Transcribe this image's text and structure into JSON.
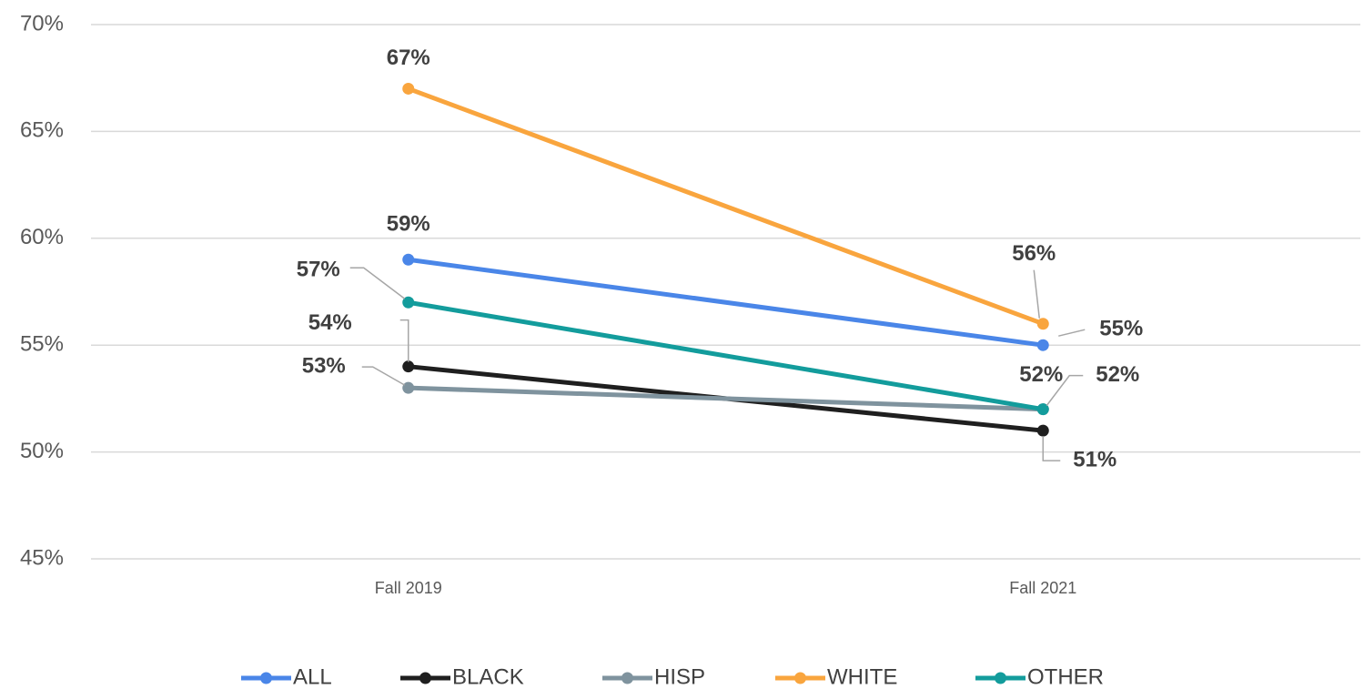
{
  "chart_data": {
    "type": "line",
    "categories": [
      "Fall 2019",
      "Fall 2021"
    ],
    "series": [
      {
        "name": "ALL",
        "color": "#4a86e8",
        "values": [
          59,
          55
        ],
        "value_labels": [
          "59%",
          "55%"
        ]
      },
      {
        "name": "BLACK",
        "color": "#1f1f1f",
        "values": [
          54,
          51
        ],
        "value_labels": [
          "54%",
          "51%"
        ]
      },
      {
        "name": "HISP",
        "color": "#7f939e",
        "values": [
          53,
          52
        ],
        "value_labels": [
          "53%",
          "52%"
        ]
      },
      {
        "name": "WHITE",
        "color": "#f9a53e",
        "values": [
          67,
          56
        ],
        "value_labels": [
          "67%",
          "56%"
        ]
      },
      {
        "name": "OTHER",
        "color": "#139c9c",
        "values": [
          57,
          52
        ],
        "value_labels": [
          "57%",
          "52%"
        ]
      }
    ],
    "ylim": [
      45,
      70
    ],
    "yticks": [
      {
        "value": 45,
        "label": "45%"
      },
      {
        "value": 50,
        "label": "50%"
      },
      {
        "value": 55,
        "label": "55%"
      },
      {
        "value": 60,
        "label": "60%"
      },
      {
        "value": 65,
        "label": "65%"
      },
      {
        "value": 70,
        "label": "70%"
      }
    ],
    "grid": true,
    "legend": "bottom"
  }
}
